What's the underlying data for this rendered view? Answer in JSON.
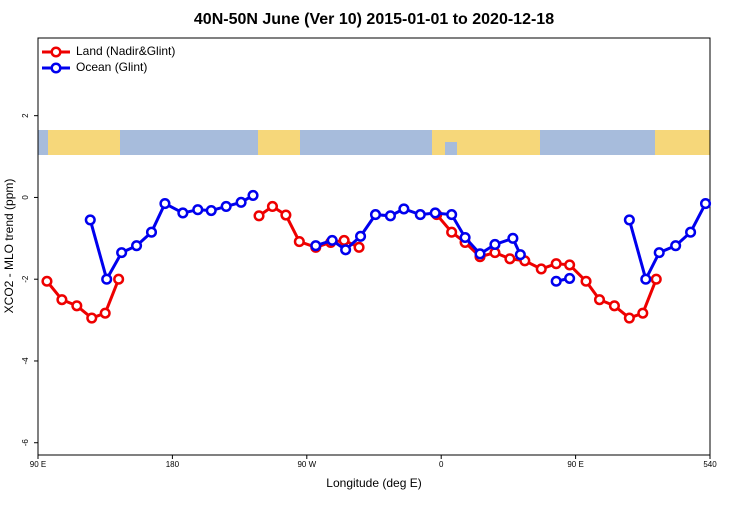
{
  "chart_data": {
    "type": "line",
    "title": "40N-50N June (Ver 10)   2015-01-01 to 2020-12-18",
    "x_label": "Longitude (deg E)",
    "y_label": "XCO2 - MLO trend (ppm)",
    "xlim": [
      90,
      540
    ],
    "xticks": [
      {
        "value": 90,
        "label": "90 E"
      },
      180,
      {
        "value": 270,
        "label": "90 W"
      },
      {
        "value": 360,
        "label": "0"
      },
      {
        "value": 450,
        "label": "90 E"
      },
      540
    ],
    "ylim": [
      -6.3,
      3.9
    ],
    "yticks": [
      -6,
      -4,
      -2,
      0,
      2
    ],
    "legend": "top-left",
    "series": [
      {
        "name": "Land (Nadir&Glint)",
        "color": "#ee0000",
        "x": [
          96,
          106,
          116,
          126,
          135,
          144,
          null,
          238,
          247,
          256,
          265,
          276,
          286,
          295,
          305,
          null,
          357,
          367,
          376,
          386,
          396,
          406,
          416,
          427,
          437,
          446,
          457,
          466,
          476,
          486,
          495,
          504
        ],
        "values": [
          -2.05,
          -2.5,
          -2.65,
          -2.95,
          -2.83,
          -2.0,
          null,
          -0.45,
          -0.22,
          -0.43,
          -1.08,
          -1.22,
          -1.1,
          -1.05,
          -1.22,
          null,
          -0.42,
          -0.85,
          -1.1,
          -1.45,
          -1.35,
          -1.5,
          -1.55,
          -1.75,
          -1.62,
          -1.65,
          -2.05,
          -2.5,
          -2.65,
          -2.95,
          -2.83,
          -2.0
        ]
      },
      {
        "name": "Ocean (Glint)",
        "color": "#0000ee",
        "x": [
          125,
          136,
          146,
          156,
          166,
          175,
          187,
          197,
          206,
          216,
          226,
          234,
          null,
          276,
          287,
          296,
          306,
          316,
          326,
          335,
          346,
          356,
          367,
          376,
          386,
          396,
          408,
          413,
          null,
          437,
          446,
          null,
          486,
          497,
          506,
          517,
          527,
          537
        ],
        "values": [
          -0.55,
          -2.0,
          -1.35,
          -1.18,
          -0.85,
          -0.15,
          -0.38,
          -0.3,
          -0.32,
          -0.22,
          -0.12,
          0.05,
          null,
          -1.18,
          -1.05,
          -1.28,
          -0.95,
          -0.42,
          -0.45,
          -0.28,
          -0.42,
          -0.38,
          -0.42,
          -0.98,
          -1.38,
          -1.15,
          -1.0,
          -1.4,
          null,
          -2.05,
          -1.98,
          null,
          -0.55,
          -2.0,
          -1.35,
          -1.18,
          -0.85,
          -0.15
        ]
      }
    ]
  }
}
